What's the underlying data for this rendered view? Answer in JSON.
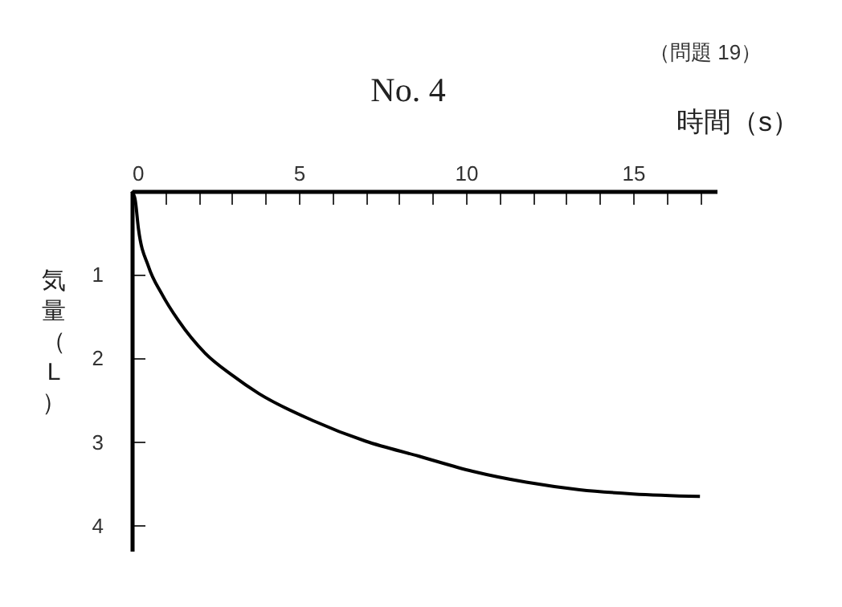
{
  "chart_data": {
    "type": "line",
    "title": "No. 4",
    "xlabel": "時間（s）",
    "ylabel": "気量（L）",
    "annotations": [
      "（問題 19）"
    ],
    "xlim": [
      0,
      17.5
    ],
    "ylim": [
      4.3,
      0
    ],
    "xticks": [
      0,
      {
        "value": 1,
        "label": null
      },
      {
        "value": 2,
        "label": null
      },
      {
        "value": 3,
        "label": null
      },
      {
        "value": 4,
        "label": null
      },
      5,
      {
        "value": 6,
        "label": null
      },
      {
        "value": 7,
        "label": null
      },
      {
        "value": 8,
        "label": null
      },
      {
        "value": 9,
        "label": null
      },
      10,
      {
        "value": 11,
        "label": null
      },
      {
        "value": 12,
        "label": null
      },
      {
        "value": 13,
        "label": null
      },
      {
        "value": 14,
        "label": null
      },
      15,
      {
        "value": 16,
        "label": null
      },
      {
        "value": 17,
        "label": null
      }
    ],
    "yticks": [
      1,
      2,
      3,
      4
    ],
    "grid": false,
    "series": [
      {
        "color": "#000000",
        "x": [
          0,
          0.1,
          0.2,
          0.5,
          0.9,
          1.4,
          2.2,
          3,
          3.8,
          5.4,
          7,
          8.6,
          10.2,
          11.8,
          13.4,
          15,
          17
        ],
        "values": [
          0,
          0.1,
          0.45,
          0.9,
          1.23,
          1.55,
          1.94,
          2.2,
          2.42,
          2.74,
          2.99,
          3.17,
          3.35,
          3.48,
          3.57,
          3.62,
          3.65
        ]
      }
    ]
  }
}
